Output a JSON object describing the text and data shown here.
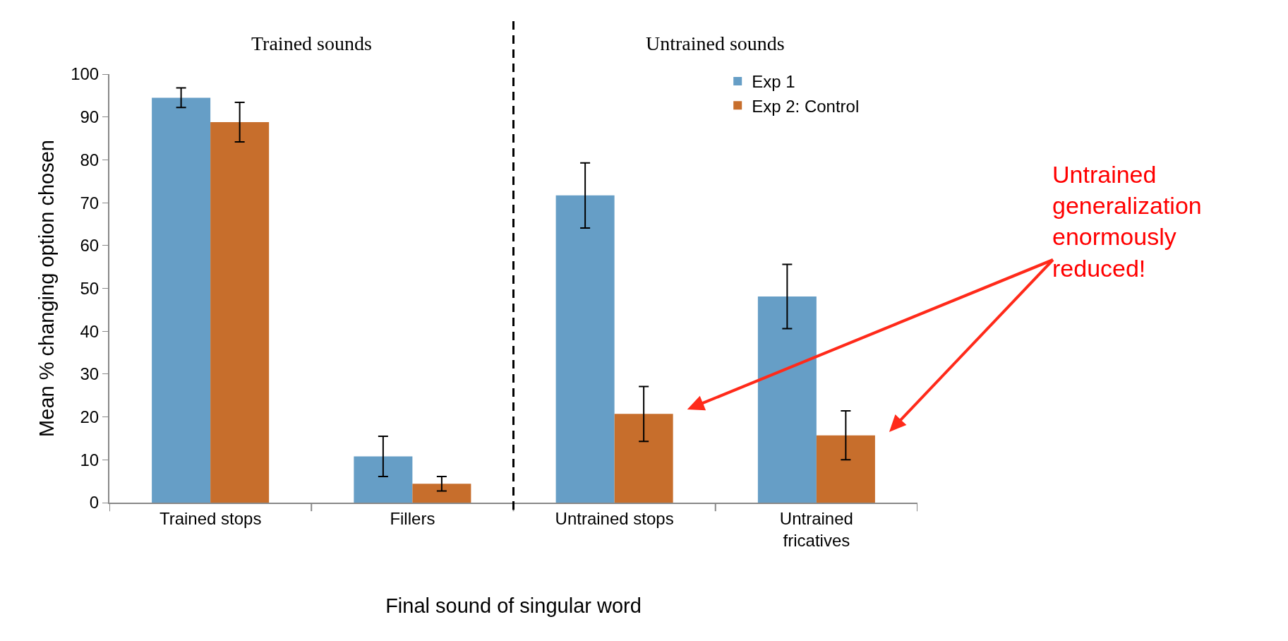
{
  "chart_data": {
    "type": "bar",
    "xlabel": "Final sound of singular word",
    "ylabel": "Mean % changing option chosen",
    "categories": [
      "Trained stops",
      "Fillers",
      "Untrained stops",
      "Untrained fricatives"
    ],
    "series": [
      {
        "name": "Exp 1",
        "color": "#669ec6",
        "values": [
          94.5,
          10.8,
          71.7,
          48.1
        ],
        "errors": [
          2.3,
          4.7,
          7.6,
          7.5
        ]
      },
      {
        "name": "Exp 2: Control",
        "color": "#c76e2c",
        "values": [
          88.8,
          4.4,
          20.7,
          15.7
        ],
        "errors": [
          4.6,
          1.7,
          6.4,
          5.7
        ]
      }
    ],
    "ylim": [
      0,
      100
    ],
    "yticks": [
      0,
      10,
      20,
      30,
      40,
      50,
      60,
      70,
      80,
      90,
      100
    ],
    "grid": false,
    "legend": "top right",
    "annotations": [
      "Trained sounds",
      "Untrained sounds",
      "Untrained generalization enormously reduced!"
    ]
  }
}
